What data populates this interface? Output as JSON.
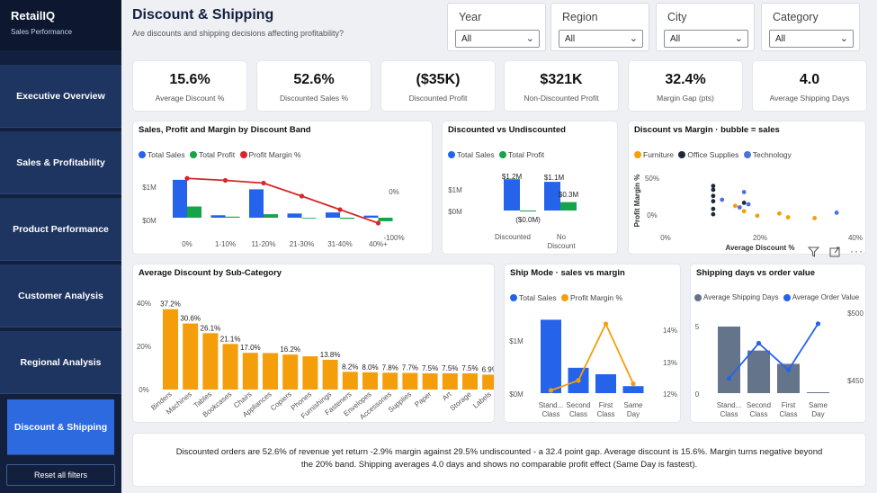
{
  "app": {
    "name": "RetailIQ",
    "subtitle": "Sales Performance"
  },
  "nav": [
    {
      "label": "Executive Overview"
    },
    {
      "label": "Sales & Profitability"
    },
    {
      "label": "Product Performance"
    },
    {
      "label": "Customer Analysis"
    },
    {
      "label": "Regional Analysis"
    },
    {
      "label": "Discount & Shipping"
    }
  ],
  "reset_label": "Reset all filters",
  "page": {
    "title": "Discount & Shipping",
    "subtitle": "Are discounts and shipping decisions affecting profitability?"
  },
  "slicers": [
    {
      "label": "Year",
      "value": "All"
    },
    {
      "label": "Region",
      "value": "All"
    },
    {
      "label": "City",
      "value": "All"
    },
    {
      "label": "Category",
      "value": "All"
    }
  ],
  "kpis": [
    {
      "value": "15.6%",
      "label": "Average Discount %"
    },
    {
      "value": "52.6%",
      "label": "Discounted Sales %"
    },
    {
      "value": "($35K)",
      "label": "Discounted Profit"
    },
    {
      "value": "$321K",
      "label": "Non-Discounted Profit"
    },
    {
      "value": "32.4%",
      "label": "Margin Gap (pts)"
    },
    {
      "value": "4.0",
      "label": "Average Shipping Days"
    }
  ],
  "colors": {
    "blue": "#2563eb",
    "green": "#16a34a",
    "red": "#d62728",
    "orange": "#f59e0b",
    "black": "#1e2a3a",
    "slate": "#64748b",
    "navy": "#12203e",
    "accent": "#2d6ae0"
  },
  "icons": [
    "filter-icon",
    "focus-mode-icon",
    "more-options-icon",
    "chevron-down-icon"
  ],
  "narrative": "Discounted orders are 52.6% of revenue yet return -2.9% margin against 29.5% undiscounted - a 32.4 point gap. Average discount is 15.6%. Margin turns negative beyond the 20% band. Shipping averages 4.0 days and shows no comparable profit effect (Same Day is fastest).",
  "chart_data": [
    {
      "id": "band",
      "type": "bar",
      "title": "Sales, Profit and Margin by Discount Band",
      "categories": [
        "0%",
        "1-10%",
        "11-20%",
        "21-30%",
        "31-40%",
        "40%+"
      ],
      "series": [
        {
          "name": "Total Sales",
          "values": [
            1.08,
            0.07,
            0.81,
            0.12,
            0.15,
            0.06
          ]
        },
        {
          "name": "Total Profit",
          "values": [
            0.32,
            0.03,
            0.1,
            -0.02,
            -0.03,
            -0.1
          ]
        },
        {
          "name": "Profit Margin %",
          "values": [
            29.5,
            25,
            19,
            -10,
            -40,
            -70
          ]
        }
      ],
      "y_ticks": [
        "$1M",
        "$0M"
      ],
      "y2_ticks": [
        "0%",
        "-100%"
      ]
    },
    {
      "id": "disc",
      "type": "bar",
      "title": "Discounted vs Undiscounted",
      "categories": [
        "Discounted",
        "No Discount"
      ],
      "series": [
        {
          "name": "Total Sales",
          "values": [
            1.2,
            1.1
          ]
        },
        {
          "name": "Total Profit",
          "values": [
            -0.035,
            0.321
          ]
        }
      ],
      "data_labels": [
        "$1.2M",
        "($0.0M)",
        "$1.1M",
        "$0.3M"
      ],
      "y_ticks": [
        "$1M",
        "$0M"
      ]
    },
    {
      "id": "bubble",
      "type": "scatter",
      "title": "Discount vs Margin · bubble = sales",
      "xlabel": "Average Discount %",
      "ylabel": "Profit Margin %",
      "x_ticks": [
        "0%",
        "20%",
        "40%"
      ],
      "y_ticks": [
        "50%",
        "0%"
      ],
      "series": [
        {
          "name": "Furniture",
          "points": [
            [
              16,
              12
            ],
            [
              21,
              -1
            ],
            [
              18,
              5
            ],
            [
              28,
              -3
            ],
            [
              34,
              -4
            ],
            [
              26,
              2
            ]
          ]
        },
        {
          "name": "Office Supplies",
          "points": [
            [
              11,
              38
            ],
            [
              11,
              33
            ],
            [
              11,
              25
            ],
            [
              11,
              18
            ],
            [
              11,
              8
            ],
            [
              11,
              1
            ],
            [
              18,
              16
            ],
            [
              47,
              14
            ]
          ]
        },
        {
          "name": "Technology",
          "points": [
            [
              18,
              30
            ],
            [
              19,
              14
            ],
            [
              39,
              3
            ],
            [
              17,
              10
            ],
            [
              13,
              20
            ]
          ]
        }
      ]
    },
    {
      "id": "subcat",
      "type": "bar",
      "title": "Average Discount by Sub-Category",
      "categories": [
        "Binders",
        "Machines",
        "Tables",
        "Bookcases",
        "Chairs",
        "Appliances",
        "Copiers",
        "Phones",
        "Furnishings",
        "Fasteners",
        "Envelopes",
        "Accessories",
        "Supplies",
        "Paper",
        "Art",
        "Storage",
        "Labels"
      ],
      "values": [
        37.2,
        30.6,
        26.1,
        21.1,
        17.0,
        16.9,
        16.2,
        15.4,
        13.8,
        8.2,
        8.0,
        7.8,
        7.7,
        7.5,
        7.5,
        7.5,
        6.9
      ],
      "data_labels": [
        "37.2%",
        "30.6%",
        "26.1%",
        "21.1%",
        "17.0%",
        "",
        "16.2%",
        "",
        "13.8%",
        "8.2%",
        "8.0%",
        "7.8%",
        "7.7%",
        "7.5%",
        "7.5%",
        "7.5%",
        "6.9%"
      ],
      "y_ticks": [
        "40%",
        "20%",
        "0%"
      ]
    },
    {
      "id": "ship",
      "type": "bar",
      "title": "Ship Mode · sales vs margin",
      "categories": [
        "Standard Class",
        "Second Class",
        "First Class",
        "Same Day"
      ],
      "series": [
        {
          "name": "Total Sales",
          "values": [
            1.36,
            0.47,
            0.35,
            0.13
          ]
        },
        {
          "name": "Profit Margin %",
          "values": [
            12.0,
            12.3,
            14.0,
            12.2
          ]
        }
      ],
      "y_ticks": [
        "$1M",
        "$0M"
      ],
      "y2_ticks": [
        "14%",
        "13%",
        "12%"
      ]
    },
    {
      "id": "shipdays",
      "type": "bar",
      "title": "Shipping days vs order value",
      "categories": [
        "Standard Class",
        "Second Class",
        "First Class",
        "Same Day"
      ],
      "series": [
        {
          "name": "Average Shipping Days",
          "values": [
            5.0,
            3.2,
            2.2,
            0.05
          ]
        },
        {
          "name": "Average Order Value",
          "values": [
            451,
            480,
            458,
            496
          ]
        }
      ],
      "y_ticks": [
        "5",
        "0"
      ],
      "y2_ticks": [
        "$500",
        "$450"
      ]
    }
  ]
}
